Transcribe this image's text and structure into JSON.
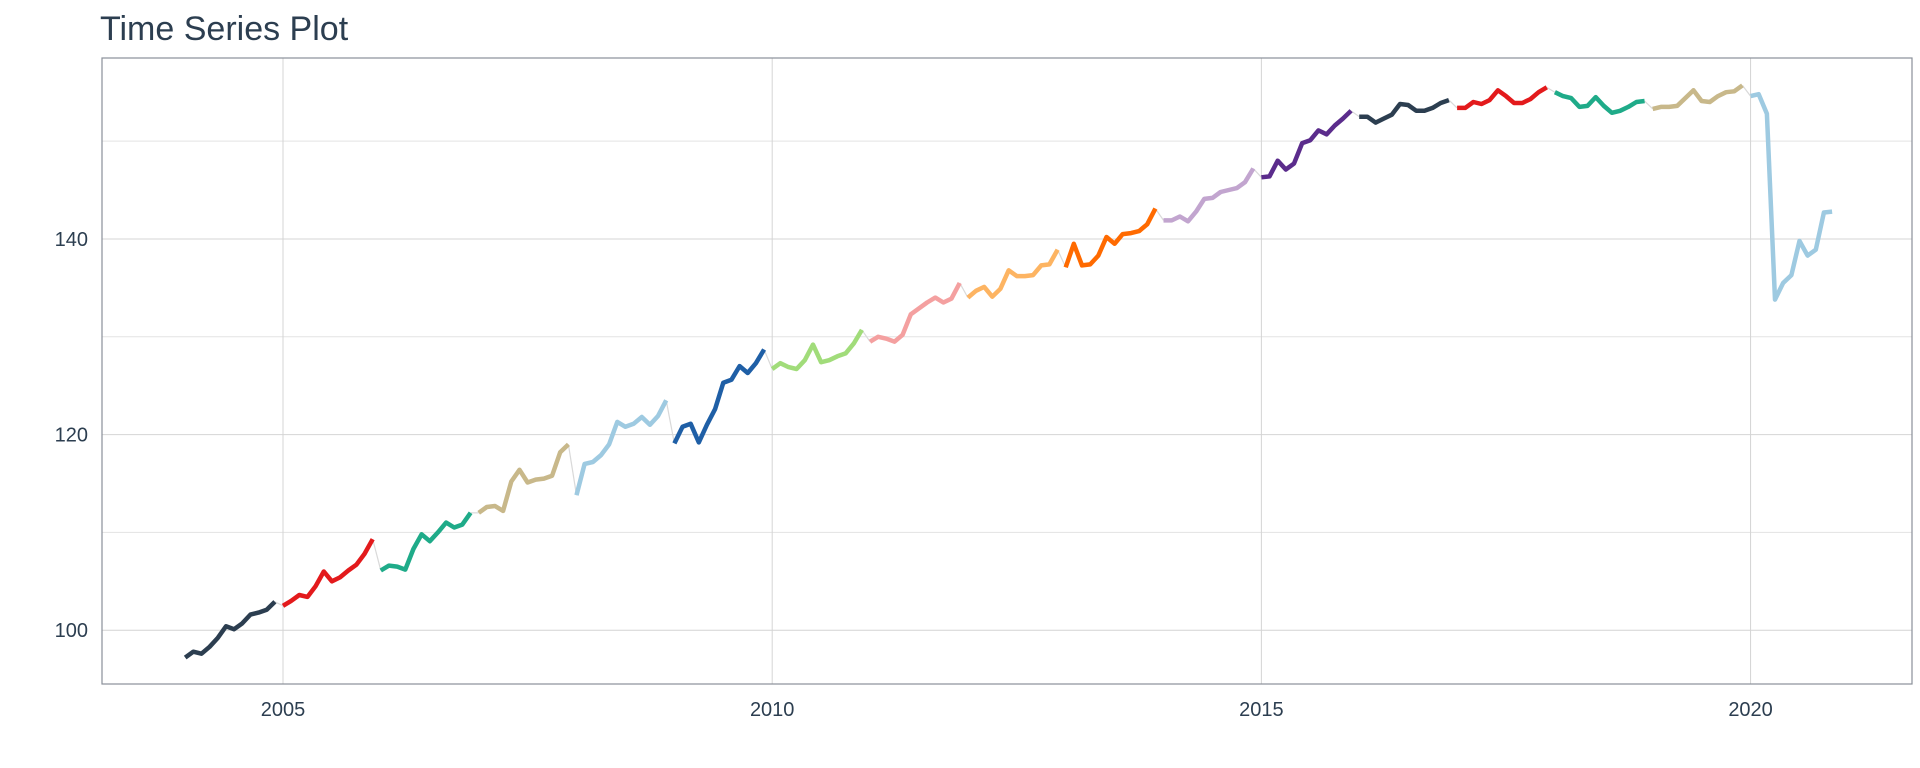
{
  "chart_data": {
    "type": "line",
    "title": "Time Series Plot",
    "xlabel": "",
    "ylabel": "",
    "xlim": [
      2003.15,
      2021.65
    ],
    "ylim": [
      94.5,
      158.5
    ],
    "x_ticks": [
      2005,
      2010,
      2015,
      2020
    ],
    "x_tick_labels": [
      "2005",
      "2010",
      "2015",
      "2020"
    ],
    "y_ticks": [
      100,
      120,
      140
    ],
    "y_tick_labels": [
      "100",
      "120",
      "140"
    ],
    "y_minor_gridlines": [
      110,
      130,
      150
    ],
    "x_minor_gridlines": [],
    "grid": true,
    "legend": "none",
    "connector_color": "#d9d9d9",
    "series": [
      {
        "color": "#2c3e50",
        "x": [
          2004.0,
          2004.083,
          2004.167,
          2004.25,
          2004.333,
          2004.417,
          2004.5,
          2004.583,
          2004.667,
          2004.75,
          2004.833,
          2004.917
        ],
        "values": [
          97.2,
          97.8,
          97.6,
          98.3,
          99.2,
          100.4,
          100.1,
          100.7,
          101.6,
          101.8,
          102.1,
          102.9
        ]
      },
      {
        "color": "#e31a1c",
        "x": [
          2005.0,
          2005.083,
          2005.167,
          2005.25,
          2005.333,
          2005.417,
          2005.5,
          2005.583,
          2005.667,
          2005.75,
          2005.833,
          2005.917
        ],
        "values": [
          102.5,
          103.0,
          103.6,
          103.4,
          104.5,
          106.0,
          105.0,
          105.4,
          106.1,
          106.7,
          107.8,
          109.3
        ]
      },
      {
        "color": "#1fab89",
        "x": [
          2006.0,
          2006.083,
          2006.167,
          2006.25,
          2006.333,
          2006.417,
          2006.5,
          2006.583,
          2006.667,
          2006.75,
          2006.833,
          2006.917
        ],
        "values": [
          106.1,
          106.6,
          106.5,
          106.2,
          108.3,
          109.8,
          109.1,
          110.0,
          111.0,
          110.5,
          110.8,
          112.0
        ]
      },
      {
        "color": "#c8b88a",
        "x": [
          2007.0,
          2007.083,
          2007.167,
          2007.25,
          2007.333,
          2007.417,
          2007.5,
          2007.583,
          2007.667,
          2007.75,
          2007.833,
          2007.917
        ],
        "values": [
          112.0,
          112.6,
          112.7,
          112.2,
          115.2,
          116.4,
          115.1,
          115.4,
          115.5,
          115.8,
          118.2,
          119.0
        ]
      },
      {
        "color": "#9ecae1",
        "x": [
          2008.0,
          2008.083,
          2008.167,
          2008.25,
          2008.333,
          2008.417,
          2008.5,
          2008.583,
          2008.667,
          2008.75,
          2008.833,
          2008.917
        ],
        "values": [
          113.8,
          117.0,
          117.2,
          117.9,
          119.0,
          121.3,
          120.8,
          121.1,
          121.8,
          121.0,
          121.9,
          123.5
        ]
      },
      {
        "color": "#1f5fa6",
        "x": [
          2009.0,
          2009.083,
          2009.167,
          2009.25,
          2009.333,
          2009.417,
          2009.5,
          2009.583,
          2009.667,
          2009.75,
          2009.833,
          2009.917
        ],
        "values": [
          119.1,
          120.8,
          121.1,
          119.2,
          121.0,
          122.6,
          125.3,
          125.6,
          127.0,
          126.3,
          127.3,
          128.7
        ]
      },
      {
        "color": "#a1dc7a",
        "x": [
          2010.0,
          2010.083,
          2010.167,
          2010.25,
          2010.333,
          2010.417,
          2010.5,
          2010.583,
          2010.667,
          2010.75,
          2010.833,
          2010.917
        ],
        "values": [
          126.7,
          127.3,
          126.9,
          126.7,
          127.6,
          129.2,
          127.4,
          127.6,
          128.0,
          128.3,
          129.3,
          130.7
        ]
      },
      {
        "color": "#f4a0a0",
        "x": [
          2011.0,
          2011.083,
          2011.167,
          2011.25,
          2011.333,
          2011.417,
          2011.5,
          2011.583,
          2011.667,
          2011.75,
          2011.833,
          2011.917
        ],
        "values": [
          129.5,
          130.0,
          129.8,
          129.5,
          130.2,
          132.3,
          132.9,
          133.5,
          134.0,
          133.5,
          133.9,
          135.5
        ]
      },
      {
        "color": "#fdb462",
        "x": [
          2012.0,
          2012.083,
          2012.167,
          2012.25,
          2012.333,
          2012.417,
          2012.5,
          2012.583,
          2012.667,
          2012.75,
          2012.833,
          2012.917
        ],
        "values": [
          134.0,
          134.7,
          135.1,
          134.1,
          134.9,
          136.8,
          136.2,
          136.2,
          136.3,
          137.3,
          137.4,
          138.9
        ]
      },
      {
        "color": "#ff6a00",
        "x": [
          2013.0,
          2013.083,
          2013.167,
          2013.25,
          2013.333,
          2013.417,
          2013.5,
          2013.583,
          2013.667,
          2013.75,
          2013.833,
          2013.917
        ],
        "values": [
          137.1,
          139.5,
          137.3,
          137.4,
          138.3,
          140.2,
          139.5,
          140.5,
          140.6,
          140.8,
          141.5,
          143.1
        ]
      },
      {
        "color": "#c2a5cf",
        "x": [
          2014.0,
          2014.083,
          2014.167,
          2014.25,
          2014.333,
          2014.417,
          2014.5,
          2014.583,
          2014.667,
          2014.75,
          2014.833,
          2014.917
        ],
        "values": [
          141.9,
          141.9,
          142.3,
          141.8,
          142.8,
          144.1,
          144.2,
          144.8,
          145.0,
          145.2,
          145.8,
          147.2
        ]
      },
      {
        "color": "#5b2c8c",
        "x": [
          2015.0,
          2015.083,
          2015.167,
          2015.25,
          2015.333,
          2015.417,
          2015.5,
          2015.583,
          2015.667,
          2015.75,
          2015.833,
          2015.917
        ],
        "values": [
          146.3,
          146.4,
          148.0,
          147.1,
          147.7,
          149.8,
          150.1,
          151.1,
          150.7,
          151.6,
          152.3,
          153.1
        ]
      },
      {
        "color": "#2c3e50",
        "x": [
          2016.0,
          2016.083,
          2016.167,
          2016.25,
          2016.333,
          2016.417,
          2016.5,
          2016.583,
          2016.667,
          2016.75,
          2016.833,
          2016.917
        ],
        "values": [
          152.5,
          152.5,
          151.9,
          152.3,
          152.7,
          153.8,
          153.7,
          153.1,
          153.1,
          153.4,
          153.9,
          154.2
        ]
      },
      {
        "color": "#e31a1c",
        "x": [
          2017.0,
          2017.083,
          2017.167,
          2017.25,
          2017.333,
          2017.417,
          2017.5,
          2017.583,
          2017.667,
          2017.75,
          2017.833,
          2017.917
        ],
        "values": [
          153.4,
          153.4,
          154.0,
          153.8,
          154.2,
          155.2,
          154.6,
          153.9,
          153.9,
          154.3,
          155.0,
          155.5
        ]
      },
      {
        "color": "#1fab89",
        "x": [
          2018.0,
          2018.083,
          2018.167,
          2018.25,
          2018.333,
          2018.417,
          2018.5,
          2018.583,
          2018.667,
          2018.75,
          2018.833,
          2018.917
        ],
        "values": [
          155.0,
          154.6,
          154.4,
          153.5,
          153.6,
          154.5,
          153.6,
          152.9,
          153.1,
          153.5,
          154.0,
          154.1
        ]
      },
      {
        "color": "#c8b88a",
        "x": [
          2019.0,
          2019.083,
          2019.167,
          2019.25,
          2019.333,
          2019.417,
          2019.5,
          2019.583,
          2019.667,
          2019.75,
          2019.833,
          2019.917
        ],
        "values": [
          153.3,
          153.5,
          153.5,
          153.6,
          154.4,
          155.2,
          154.1,
          154.0,
          154.6,
          155.0,
          155.1,
          155.7
        ]
      },
      {
        "color": "#9ecae1",
        "x": [
          2020.0,
          2020.083,
          2020.167,
          2020.25,
          2020.333,
          2020.417,
          2020.5,
          2020.583,
          2020.667,
          2020.75,
          2020.833
        ],
        "values": [
          154.6,
          154.8,
          152.8,
          133.8,
          135.5,
          136.3,
          139.8,
          138.3,
          138.9,
          142.7,
          142.8
        ]
      }
    ]
  }
}
